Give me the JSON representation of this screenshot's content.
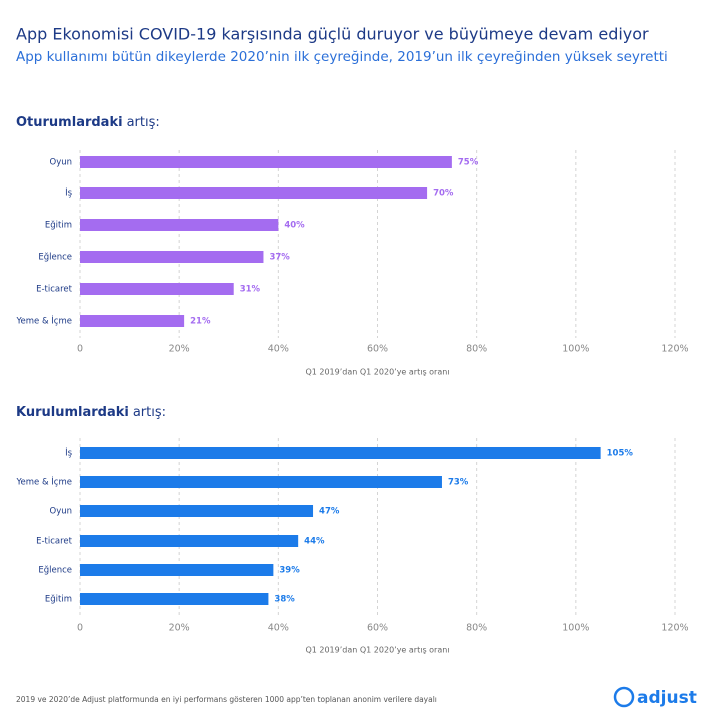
{
  "header": {
    "title": "App Ekonomisi COVID-19 karşısında güçlü duruyor ve büyümeye devam ediyor",
    "subtitle": "App kullanımı bütün dikeylerde 2020’nin ilk çeyreğinde, 2019’un ilk çeyreğinden yüksek seyretti"
  },
  "chart_data": [
    {
      "type": "bar",
      "orientation": "horizontal",
      "title": [
        "Oturumlardaki",
        "artış:"
      ],
      "categories": [
        "Oyun",
        "İş",
        "Eğitim",
        "Eğlence",
        "E-ticaret",
        "Yeme & İçme"
      ],
      "values": [
        75,
        70,
        40,
        37,
        31,
        21
      ],
      "value_labels": [
        "75%",
        "70%",
        "40%",
        "37%",
        "31%",
        "21%"
      ],
      "color": "#a46cf0",
      "xlim": [
        0,
        120
      ],
      "xticks": [
        0,
        {
          "value": 20,
          "label": "20%"
        },
        {
          "value": 40,
          "label": "40%"
        },
        {
          "value": 60,
          "label": "60%"
        },
        {
          "value": 80,
          "label": "80%"
        },
        {
          "value": 100,
          "label": "100%"
        },
        {
          "value": 120,
          "label": "120%"
        }
      ],
      "x_label": "Q1 2019’dan Q1 2020’ye artış oranı",
      "grid": true
    },
    {
      "type": "bar",
      "orientation": "horizontal",
      "title": [
        "Kurulumlardaki",
        "artış:"
      ],
      "categories": [
        "İş",
        "Yeme & İçme",
        "Oyun",
        "E-ticaret",
        "Eğlence",
        "Eğitim"
      ],
      "values": [
        105,
        73,
        47,
        44,
        39,
        38
      ],
      "value_labels": [
        "105%",
        "73%",
        "47%",
        "44%",
        "39%",
        "38%"
      ],
      "color": "#1c7be9",
      "xlim": [
        0,
        120
      ],
      "xticks": [
        0,
        {
          "value": 20,
          "label": "20%"
        },
        {
          "value": 40,
          "label": "40%"
        },
        {
          "value": 60,
          "label": "60%"
        },
        {
          "value": 80,
          "label": "80%"
        },
        {
          "value": 100,
          "label": "100%"
        },
        {
          "value": 120,
          "label": "120%"
        }
      ],
      "x_label": "Q1 2019’dan Q1 2020’ye artış oranı",
      "grid": true
    }
  ],
  "footer": "2019 ve 2020’de Adjust platformunda en iyi performans gösteren 1000 app’ten toplanan anonim verilere dayalı",
  "logo": "adjust"
}
